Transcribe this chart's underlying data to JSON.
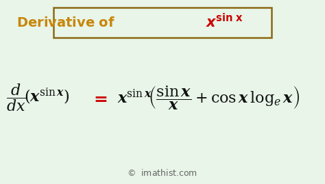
{
  "bg_color": "#e8f5e8",
  "title_color_derivative": "#c8860a",
  "title_color_formula": "#cc0000",
  "title_box_color": "#8B6914",
  "formula_color": "#111111",
  "equal_color": "#cc0000",
  "watermark_color": "#666666",
  "fig_width": 4.74,
  "fig_height": 2.69,
  "dpi": 100
}
